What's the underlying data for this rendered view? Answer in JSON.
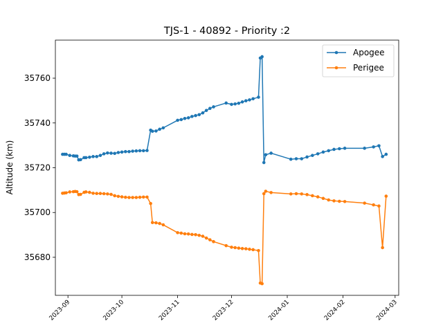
{
  "chart_data": {
    "type": "line",
    "title": "TJS-1 - 40892 - Priority :2",
    "xlabel": "",
    "ylabel": "Altitude (km)",
    "ylim": [
      35663,
      35777
    ],
    "xlim": [
      "2023-08-25",
      "2024-03-03"
    ],
    "x_ticks": [
      "2023-09",
      "2023-10",
      "2023-11",
      "2023-12",
      "2024-01",
      "2024-02",
      "2024-03"
    ],
    "y_ticks": [
      35680,
      35700,
      35720,
      35740,
      35760
    ],
    "grid": false,
    "legend_position": "top-right",
    "series": [
      {
        "name": "Apogee",
        "color": "#1f77b4",
        "points": [
          [
            "2023-08-29",
            35726
          ],
          [
            "2023-08-30",
            35726
          ],
          [
            "2023-08-31",
            35726
          ],
          [
            "2023-09-02",
            35725.5
          ],
          [
            "2023-09-04",
            35725.3
          ],
          [
            "2023-09-05",
            35725.2
          ],
          [
            "2023-09-06",
            35725.2
          ],
          [
            "2023-09-07",
            35723.5
          ],
          [
            "2023-09-08",
            35723.6
          ],
          [
            "2023-09-10",
            35724.5
          ],
          [
            "2023-09-11",
            35724.5
          ],
          [
            "2023-09-13",
            35724.7
          ],
          [
            "2023-09-15",
            35725
          ],
          [
            "2023-09-17",
            35725
          ],
          [
            "2023-09-19",
            35725.5
          ],
          [
            "2023-09-21",
            35726.2
          ],
          [
            "2023-09-23",
            35726.6
          ],
          [
            "2023-09-25",
            35726.5
          ],
          [
            "2023-09-27",
            35726.4
          ],
          [
            "2023-09-29",
            35726.8
          ],
          [
            "2023-10-01",
            35727
          ],
          [
            "2023-10-03",
            35727.2
          ],
          [
            "2023-10-05",
            35727.2
          ],
          [
            "2023-10-07",
            35727.4
          ],
          [
            "2023-10-09",
            35727.5
          ],
          [
            "2023-10-11",
            35727.6
          ],
          [
            "2023-10-13",
            35727.6
          ],
          [
            "2023-10-15",
            35727.7
          ],
          [
            "2023-10-17",
            35736.8
          ],
          [
            "2023-10-18",
            35736.3
          ],
          [
            "2023-10-20",
            35736.4
          ],
          [
            "2023-10-22",
            35737.2
          ],
          [
            "2023-10-24",
            35737.8
          ],
          [
            "2023-11-01",
            35741.2
          ],
          [
            "2023-11-03",
            35741.5
          ],
          [
            "2023-11-05",
            35742
          ],
          [
            "2023-11-07",
            35742.3
          ],
          [
            "2023-11-09",
            35742.9
          ],
          [
            "2023-11-11",
            35743.3
          ],
          [
            "2023-11-13",
            35743.7
          ],
          [
            "2023-11-15",
            35744.5
          ],
          [
            "2023-11-17",
            35745.6
          ],
          [
            "2023-11-19",
            35746.5
          ],
          [
            "2023-11-21",
            35747.2
          ],
          [
            "2023-11-28",
            35748.9
          ],
          [
            "2023-12-01",
            35748.3
          ],
          [
            "2023-12-03",
            35748.5
          ],
          [
            "2023-12-05",
            35748.8
          ],
          [
            "2023-12-07",
            35749.4
          ],
          [
            "2023-12-09",
            35749.9
          ],
          [
            "2023-12-11",
            35750.3
          ],
          [
            "2023-12-13",
            35750.8
          ],
          [
            "2023-12-16",
            35751.5
          ],
          [
            "2023-12-17",
            35769
          ],
          [
            "2023-12-18",
            35769.6
          ],
          [
            "2023-12-19",
            35722.3
          ],
          [
            "2023-12-20",
            35725.8
          ],
          [
            "2023-12-23",
            35726.5
          ],
          [
            "2024-01-03",
            35723.8
          ],
          [
            "2024-01-06",
            35724
          ],
          [
            "2024-01-09",
            35724
          ],
          [
            "2024-01-12",
            35724.8
          ],
          [
            "2024-01-15",
            35725.5
          ],
          [
            "2024-01-18",
            35726.2
          ],
          [
            "2024-01-21",
            35727
          ],
          [
            "2024-01-24",
            35727.6
          ],
          [
            "2024-01-27",
            35728.2
          ],
          [
            "2024-01-30",
            35728.5
          ],
          [
            "2024-02-02",
            35728.7
          ],
          [
            "2024-02-13",
            35728.7
          ],
          [
            "2024-02-18",
            35729.3
          ],
          [
            "2024-02-21",
            35729.8
          ],
          [
            "2024-02-23",
            35725
          ],
          [
            "2024-02-25",
            35726
          ]
        ]
      },
      {
        "name": "Perigee",
        "color": "#ff7f0e",
        "points": [
          [
            "2023-08-29",
            35708.6
          ],
          [
            "2023-08-30",
            35708.7
          ],
          [
            "2023-08-31",
            35708.8
          ],
          [
            "2023-09-02",
            35709.2
          ],
          [
            "2023-09-04",
            35709.3
          ],
          [
            "2023-09-05",
            35709.4
          ],
          [
            "2023-09-06",
            35709.3
          ],
          [
            "2023-09-07",
            35708
          ],
          [
            "2023-09-08",
            35708.1
          ],
          [
            "2023-09-10",
            35709
          ],
          [
            "2023-09-11",
            35709.2
          ],
          [
            "2023-09-13",
            35709
          ],
          [
            "2023-09-15",
            35708.6
          ],
          [
            "2023-09-17",
            35708.5
          ],
          [
            "2023-09-19",
            35708.5
          ],
          [
            "2023-09-21",
            35708.4
          ],
          [
            "2023-09-23",
            35708.3
          ],
          [
            "2023-09-25",
            35708.1
          ],
          [
            "2023-09-27",
            35707.5
          ],
          [
            "2023-09-29",
            35707.2
          ],
          [
            "2023-10-01",
            35707
          ],
          [
            "2023-10-03",
            35706.8
          ],
          [
            "2023-10-05",
            35706.7
          ],
          [
            "2023-10-07",
            35706.7
          ],
          [
            "2023-10-09",
            35706.7
          ],
          [
            "2023-10-11",
            35706.8
          ],
          [
            "2023-10-13",
            35706.9
          ],
          [
            "2023-10-15",
            35706.9
          ],
          [
            "2023-10-17",
            35704
          ],
          [
            "2023-10-18",
            35695.5
          ],
          [
            "2023-10-20",
            35695.4
          ],
          [
            "2023-10-22",
            35695.1
          ],
          [
            "2023-10-24",
            35694.5
          ],
          [
            "2023-11-01",
            35691
          ],
          [
            "2023-11-03",
            35690.8
          ],
          [
            "2023-11-05",
            35690.5
          ],
          [
            "2023-11-07",
            35690.4
          ],
          [
            "2023-11-09",
            35690.2
          ],
          [
            "2023-11-11",
            35690.1
          ],
          [
            "2023-11-13",
            35689.8
          ],
          [
            "2023-11-15",
            35689.4
          ],
          [
            "2023-11-17",
            35688.6
          ],
          [
            "2023-11-19",
            35687.8
          ],
          [
            "2023-11-21",
            35687
          ],
          [
            "2023-11-28",
            35685.2
          ],
          [
            "2023-12-01",
            35684.5
          ],
          [
            "2023-12-03",
            35684.3
          ],
          [
            "2023-12-05",
            35684.1
          ],
          [
            "2023-12-07",
            35683.9
          ],
          [
            "2023-12-09",
            35683.8
          ],
          [
            "2023-12-11",
            35683.6
          ],
          [
            "2023-12-13",
            35683.4
          ],
          [
            "2023-12-16",
            35683
          ],
          [
            "2023-12-17",
            35668.5
          ],
          [
            "2023-12-18",
            35668.2
          ],
          [
            "2023-12-19",
            35708.4
          ],
          [
            "2023-12-20",
            35709.5
          ],
          [
            "2023-12-23",
            35708.9
          ],
          [
            "2024-01-03",
            35708.3
          ],
          [
            "2024-01-06",
            35708.4
          ],
          [
            "2024-01-09",
            35708.3
          ],
          [
            "2024-01-12",
            35708
          ],
          [
            "2024-01-15",
            35707.5
          ],
          [
            "2024-01-18",
            35707
          ],
          [
            "2024-01-21",
            35706.3
          ],
          [
            "2024-01-24",
            35705.6
          ],
          [
            "2024-01-27",
            35705.2
          ],
          [
            "2024-01-30",
            35705
          ],
          [
            "2024-02-02",
            35704.9
          ],
          [
            "2024-02-13",
            35704.2
          ],
          [
            "2024-02-18",
            35703.4
          ],
          [
            "2024-02-21",
            35702.9
          ],
          [
            "2024-02-23",
            35684.3
          ],
          [
            "2024-02-25",
            35707.3
          ]
        ]
      }
    ]
  }
}
